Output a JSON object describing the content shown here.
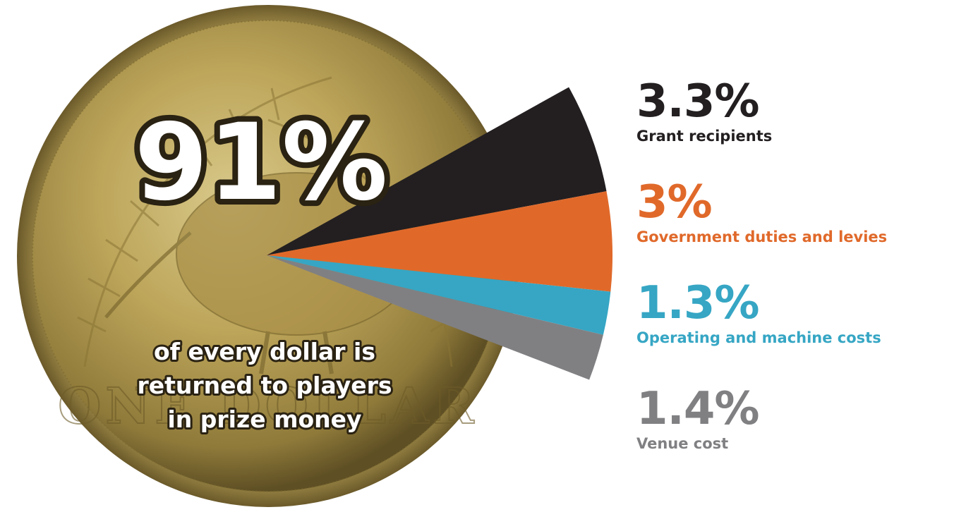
{
  "chart_data": {
    "type": "pie",
    "center_value": "91%",
    "center_caption": [
      "of every dollar is",
      "returned to players",
      "in prize money"
    ],
    "coin_inscription": "ONE DOLLAR",
    "slices": [
      {
        "value": 3.3,
        "display": "3.3%",
        "label": "Grant recipients",
        "color": "#231f20"
      },
      {
        "value": 3.0,
        "display": "3%",
        "label": "Government duties and levies",
        "color": "#e0692a"
      },
      {
        "value": 1.3,
        "display": "1.3%",
        "label": "Operating and machine costs",
        "color": "#36a6c4"
      },
      {
        "value": 1.4,
        "display": "1.4%",
        "label": "Venue cost",
        "color": "#808083"
      }
    ]
  }
}
